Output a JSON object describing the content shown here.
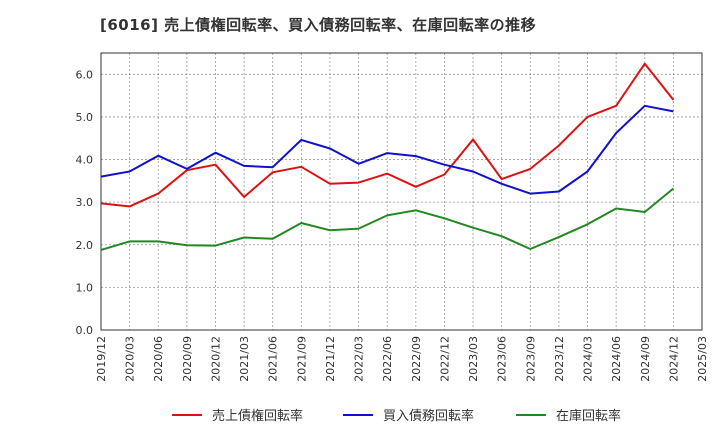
{
  "chart_data": {
    "type": "line",
    "title": "[6016]  売上債権回転率、買入債務回転率、在庫回転率の推移",
    "xlabel": "",
    "ylabel": "",
    "ylim": [
      0,
      6.5
    ],
    "yticks": [
      "0.0",
      "1.0",
      "2.0",
      "3.0",
      "4.0",
      "5.0",
      "6.0"
    ],
    "grid": true,
    "legend_position": "bottom",
    "x": [
      "2019/12",
      "2020/03",
      "2020/06",
      "2020/09",
      "2020/12",
      "2021/03",
      "2021/06",
      "2021/09",
      "2021/12",
      "2022/03",
      "2022/06",
      "2022/09",
      "2022/12",
      "2023/03",
      "2023/06",
      "2023/09",
      "2023/12",
      "2024/03",
      "2024/06",
      "2024/09",
      "2024/12",
      "2025/03"
    ],
    "series": [
      {
        "name": "売上債権回転率",
        "color": "#dd1111",
        "values": [
          2.97,
          2.9,
          3.2,
          3.75,
          3.88,
          3.12,
          3.7,
          3.83,
          3.43,
          3.46,
          3.67,
          3.36,
          3.65,
          4.47,
          3.54,
          3.78,
          4.33,
          5.0,
          5.26,
          6.25,
          5.4,
          null
        ]
      },
      {
        "name": "買入債務回転率",
        "color": "#1111cc",
        "values": [
          3.6,
          3.72,
          4.09,
          3.78,
          4.16,
          3.85,
          3.82,
          4.46,
          4.26,
          3.9,
          4.15,
          4.08,
          3.88,
          3.72,
          3.43,
          3.2,
          3.25,
          3.72,
          4.62,
          5.26,
          5.13,
          null
        ]
      },
      {
        "name": "在庫回転率",
        "color": "#228822",
        "values": [
          1.88,
          2.08,
          2.08,
          1.99,
          1.98,
          2.17,
          2.14,
          2.51,
          2.34,
          2.38,
          2.69,
          2.81,
          2.62,
          2.4,
          2.2,
          1.9,
          2.18,
          2.48,
          2.85,
          2.77,
          3.32,
          null
        ]
      }
    ]
  }
}
